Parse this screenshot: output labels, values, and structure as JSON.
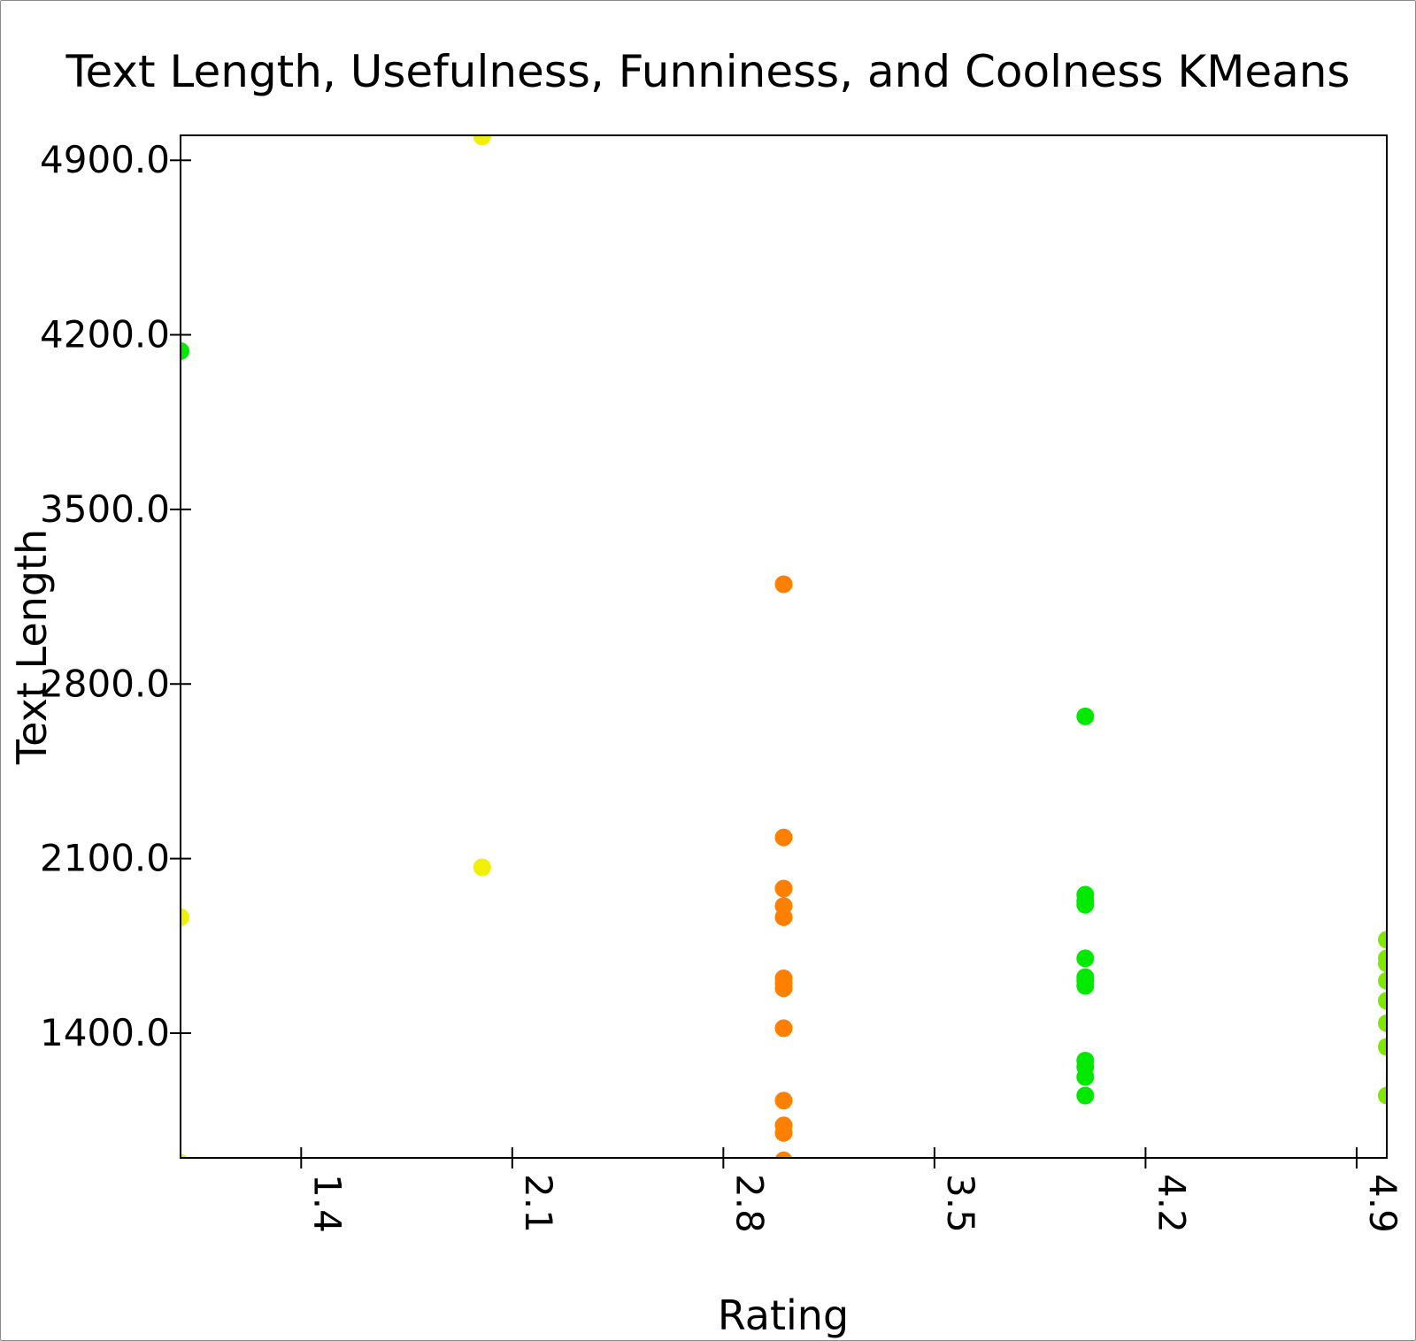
{
  "chart_data": {
    "type": "scatter",
    "title": "Text Length, Usefulness, Funniness, and Coolness KMeans",
    "xlabel": "Rating",
    "ylabel": "Text Length",
    "xlim": [
      1.0,
      5.0
    ],
    "ylim": [
      900,
      5000
    ],
    "x_ticks": [
      1.4,
      2.1,
      2.8,
      3.5,
      4.2,
      4.9
    ],
    "x_tick_labels": [
      "1.4",
      "2.1",
      "2.8",
      "3.5",
      "4.2",
      "4.9"
    ],
    "y_ticks": [
      1400,
      2100,
      2800,
      3500,
      4200,
      4900
    ],
    "y_tick_labels": [
      "1400.0",
      "2100.0",
      "2800.0",
      "3500.0",
      "4200.0",
      "4900.0"
    ],
    "x_tick_labels_rotated": true,
    "grid": false,
    "legend": "none",
    "series": [
      {
        "color": "#f0f000",
        "points": [
          [
            2.0,
            4995
          ],
          [
            2.0,
            2065
          ],
          [
            1.0,
            1865
          ],
          [
            1.0,
            880
          ]
        ]
      },
      {
        "color": "#00ea00",
        "points": [
          [
            1.0,
            4135
          ],
          [
            4.0,
            2670
          ],
          [
            4.0,
            1955
          ],
          [
            4.0,
            1930
          ],
          [
            4.0,
            1915
          ],
          [
            4.0,
            1700
          ],
          [
            4.0,
            1625
          ],
          [
            4.0,
            1610
          ],
          [
            4.0,
            1590
          ],
          [
            4.0,
            1290
          ],
          [
            4.0,
            1265
          ],
          [
            4.0,
            1225
          ],
          [
            4.0,
            1150
          ]
        ]
      },
      {
        "color": "#ff7f00",
        "points": [
          [
            3.0,
            3200
          ],
          [
            3.0,
            2185
          ],
          [
            3.0,
            1980
          ],
          [
            3.0,
            1910
          ],
          [
            3.0,
            1865
          ],
          [
            3.0,
            1620
          ],
          [
            3.0,
            1600
          ],
          [
            3.0,
            1580
          ],
          [
            3.0,
            1420
          ],
          [
            3.0,
            1130
          ],
          [
            3.0,
            1030
          ],
          [
            3.0,
            1000
          ],
          [
            3.0,
            890
          ]
        ]
      },
      {
        "color": "#7fe800",
        "points": [
          [
            5.0,
            1775
          ],
          [
            5.0,
            1700
          ],
          [
            5.0,
            1680
          ],
          [
            5.0,
            1610
          ],
          [
            5.0,
            1530
          ],
          [
            5.0,
            1440
          ],
          [
            5.0,
            1345
          ],
          [
            5.0,
            1150
          ]
        ]
      }
    ]
  }
}
